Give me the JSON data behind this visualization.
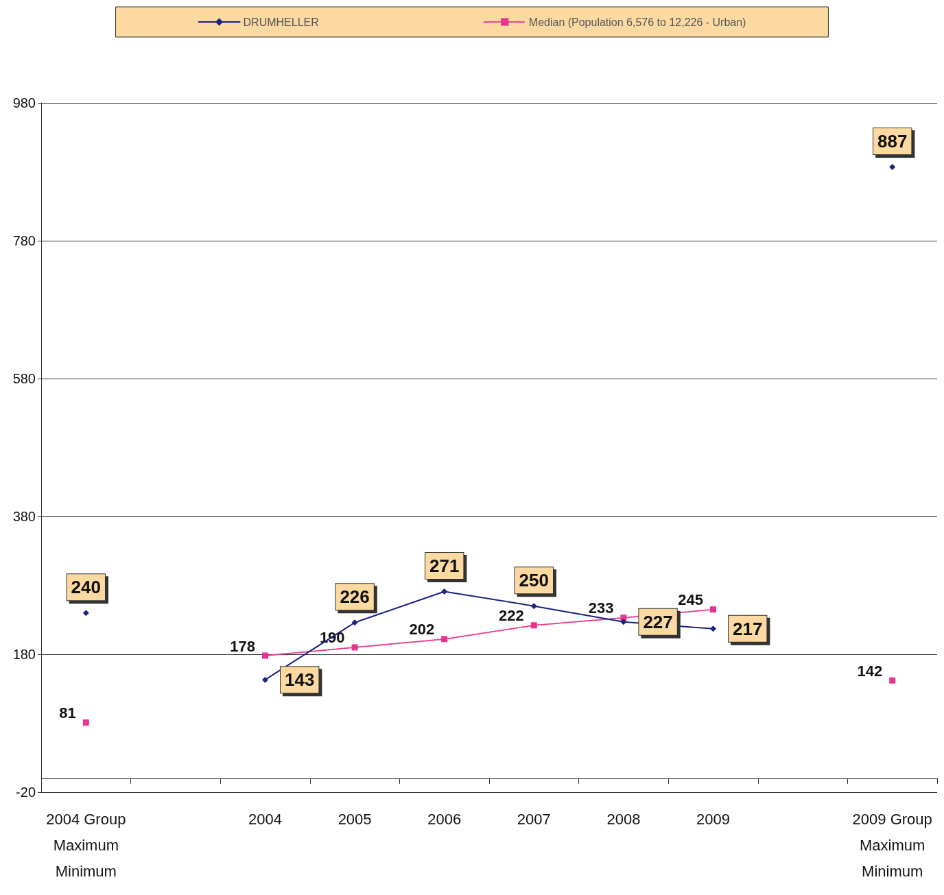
{
  "chart_data": {
    "type": "line",
    "categories": [
      "2004 Group\nMaximum\nMinimum",
      null,
      "2004",
      "2005",
      "2006",
      "2007",
      "2008",
      "2009",
      null,
      "2009 Group\nMaximum\nMinimum"
    ],
    "series": [
      {
        "name": "DRUMHELLER",
        "color": "#1a237e",
        "marker": "diamond",
        "line_style": "solid",
        "values": [
          240,
          null,
          143,
          226,
          271,
          250,
          227,
          217,
          null,
          887
        ]
      },
      {
        "name": "Median (Population 6,576 to 12,226 - Urban)",
        "color": "#e6358f",
        "marker": "square",
        "line_style": "dotted",
        "values": [
          81,
          null,
          178,
          190,
          202,
          222,
          233,
          245,
          null,
          142
        ]
      }
    ],
    "ylim": [
      -20,
      980
    ],
    "yticks": [
      -20,
      180,
      380,
      580,
      780,
      980
    ],
    "grid": "y",
    "legend": "top",
    "data_labels": true
  }
}
